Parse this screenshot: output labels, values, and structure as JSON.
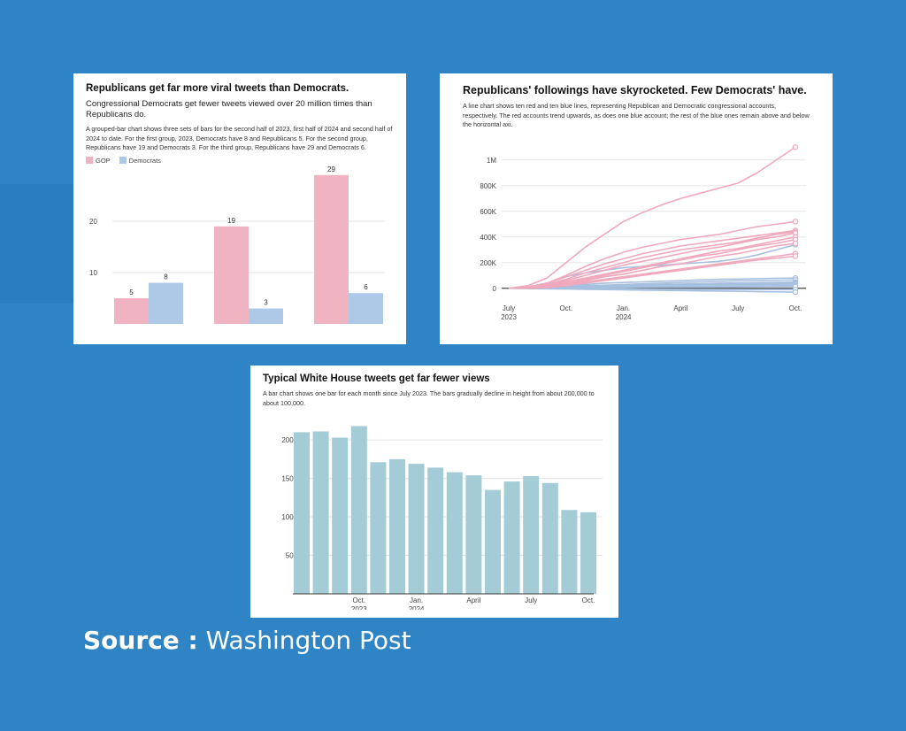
{
  "source": {
    "label": "Source :",
    "value": "Washington Post"
  },
  "chart_data": [
    {
      "type": "bar",
      "title": "Republicans get far more viral tweets than Democrats.",
      "subtitle": "Congressional Democrats get fewer tweets viewed over 20 million times than Republicans do.",
      "description": "A grouped-bar chart shows three sets of bars for the second half of 2023, first half of 2024 and second half of 2024 to date. For the first group, 2023, Democrats have 8 and Republicans 5. For the second group, Republicans have 19 and Democrats 3. For the third group, Republicans have 29 and Democrats 6.",
      "categories": [
        "",
        "",
        ""
      ],
      "series": [
        {
          "name": "GOP",
          "color": "#f0b3c2",
          "values": [
            5,
            19,
            29
          ]
        },
        {
          "name": "Democrats",
          "color": "#aec8e8",
          "values": [
            8,
            3,
            6
          ]
        }
      ],
      "yticks": [
        10,
        20
      ],
      "ylim": [
        0,
        30
      ],
      "legend": "top-left"
    },
    {
      "type": "line",
      "title": "Republicans' followings have skyrocketed. Few Democrats' have.",
      "description": "A line chart shows ten red and ten blue lines, representing Republican and Democratic congressional accounts, respectively. The red accounts trend upwards, as does one blue account; the rest of the blue ones remain above and below the horizontal axi.",
      "x_ticks": [
        {
          "label": "July",
          "sublabel": "2023",
          "date": "2023-07"
        },
        {
          "label": "Oct.",
          "sublabel": "",
          "date": "2023-10"
        },
        {
          "label": "Jan.",
          "sublabel": "2024",
          "date": "2024-01"
        },
        {
          "label": "April",
          "sublabel": "",
          "date": "2024-04"
        },
        {
          "label": "July",
          "sublabel": "",
          "date": "2024-07"
        },
        {
          "label": "Oct.",
          "sublabel": "",
          "date": "2024-10"
        }
      ],
      "yticks": [
        {
          "label": "0",
          "value": 0
        },
        {
          "label": "200K",
          "value": 200000
        },
        {
          "label": "400K",
          "value": 400000
        },
        {
          "label": "600K",
          "value": 600000
        },
        {
          "label": "800K",
          "value": 800000
        },
        {
          "label": "1M",
          "value": 1000000
        }
      ],
      "ylim": [
        -50000,
        1150000
      ],
      "x_dates": [
        "2023-07",
        "2023-08",
        "2023-09",
        "2023-10",
        "2023-11",
        "2023-12",
        "2024-01",
        "2024-02",
        "2024-03",
        "2024-04",
        "2024-05",
        "2024-06",
        "2024-07",
        "2024-08",
        "2024-09",
        "2024-10"
      ],
      "series": [
        {
          "name": "",
          "party": "R",
          "values": [
            0,
            20000,
            80000,
            200000,
            320000,
            420000,
            520000,
            590000,
            650000,
            700000,
            740000,
            780000,
            820000,
            900000,
            1000000,
            1100000
          ]
        },
        {
          "name": "",
          "party": "R",
          "values": [
            0,
            10000,
            40000,
            100000,
            170000,
            230000,
            280000,
            320000,
            350000,
            380000,
            400000,
            420000,
            450000,
            480000,
            500000,
            520000
          ]
        },
        {
          "name": "",
          "party": "R",
          "values": [
            0,
            10000,
            40000,
            90000,
            140000,
            190000,
            230000,
            270000,
            300000,
            330000,
            350000,
            370000,
            390000,
            410000,
            430000,
            450000
          ]
        },
        {
          "name": "",
          "party": "R",
          "values": [
            0,
            5000,
            30000,
            70000,
            120000,
            160000,
            200000,
            240000,
            270000,
            300000,
            320000,
            340000,
            360000,
            390000,
            420000,
            440000
          ]
        },
        {
          "name": "",
          "party": "R",
          "values": [
            0,
            5000,
            25000,
            60000,
            100000,
            140000,
            180000,
            210000,
            240000,
            270000,
            300000,
            320000,
            350000,
            380000,
            400000,
            430000
          ]
        },
        {
          "name": "",
          "party": "R",
          "values": [
            0,
            0,
            20000,
            50000,
            80000,
            110000,
            140000,
            170000,
            200000,
            230000,
            260000,
            290000,
            310000,
            340000,
            370000,
            400000
          ]
        },
        {
          "name": "",
          "party": "R",
          "values": [
            0,
            0,
            15000,
            40000,
            70000,
            100000,
            130000,
            160000,
            190000,
            220000,
            250000,
            270000,
            300000,
            330000,
            350000,
            380000
          ]
        },
        {
          "name": "",
          "party": "R",
          "values": [
            0,
            0,
            10000,
            30000,
            60000,
            90000,
            110000,
            140000,
            170000,
            190000,
            220000,
            250000,
            270000,
            300000,
            330000,
            350000
          ]
        },
        {
          "name": "",
          "party": "R",
          "values": [
            0,
            0,
            10000,
            25000,
            50000,
            70000,
            90000,
            110000,
            130000,
            150000,
            170000,
            190000,
            210000,
            230000,
            250000,
            270000
          ]
        },
        {
          "name": "",
          "party": "R",
          "values": [
            0,
            0,
            5000,
            20000,
            40000,
            60000,
            80000,
            100000,
            120000,
            140000,
            160000,
            180000,
            200000,
            220000,
            235000,
            250000
          ]
        },
        {
          "name": "",
          "party": "D",
          "values": [
            0,
            10000,
            40000,
            90000,
            120000,
            140000,
            160000,
            170000,
            180000,
            190000,
            200000,
            210000,
            230000,
            260000,
            300000,
            340000
          ]
        },
        {
          "name": "",
          "party": "D",
          "values": [
            0,
            5000,
            10000,
            20000,
            30000,
            40000,
            45000,
            50000,
            55000,
            60000,
            65000,
            70000,
            72000,
            75000,
            78000,
            80000
          ]
        },
        {
          "name": "",
          "party": "D",
          "values": [
            0,
            5000,
            10000,
            15000,
            20000,
            25000,
            30000,
            35000,
            40000,
            45000,
            50000,
            55000,
            58000,
            60000,
            62000,
            65000
          ]
        },
        {
          "name": "",
          "party": "D",
          "values": [
            0,
            2000,
            5000,
            10000,
            15000,
            20000,
            25000,
            28000,
            30000,
            33000,
            36000,
            40000,
            42000,
            44000,
            46000,
            48000
          ]
        },
        {
          "name": "",
          "party": "D",
          "values": [
            0,
            2000,
            4000,
            8000,
            12000,
            15000,
            18000,
            21000,
            24000,
            27000,
            30000,
            32000,
            34000,
            36000,
            38000,
            40000
          ]
        },
        {
          "name": "",
          "party": "D",
          "values": [
            0,
            1000,
            3000,
            6000,
            9000,
            12000,
            14000,
            16000,
            18000,
            20000,
            22000,
            24000,
            26000,
            28000,
            30000,
            32000
          ]
        },
        {
          "name": "",
          "party": "D",
          "values": [
            0,
            1000,
            2000,
            4000,
            6000,
            8000,
            10000,
            11000,
            12000,
            13000,
            14000,
            15000,
            16000,
            18000,
            20000,
            22000
          ]
        },
        {
          "name": "",
          "party": "D",
          "values": [
            0,
            0,
            1000,
            2000,
            3000,
            4000,
            5000,
            6000,
            7000,
            8000,
            9000,
            10000,
            11000,
            12000,
            13000,
            14000
          ]
        },
        {
          "name": "",
          "party": "D",
          "values": [
            0,
            -1000,
            -2000,
            -3000,
            -4000,
            -5000,
            -6000,
            -7000,
            -8000,
            -9000,
            -10000,
            -10000,
            -10000,
            -10000,
            -10000,
            -10000
          ]
        },
        {
          "name": "",
          "party": "D",
          "values": [
            0,
            -2000,
            -4000,
            -6000,
            -8000,
            -10000,
            -12000,
            -14000,
            -16000,
            -18000,
            -20000,
            -22000,
            -24000,
            -26000,
            -28000,
            -30000
          ]
        }
      ],
      "colors": {
        "R": "#f0a8bd",
        "D": "#a8c0e0"
      }
    },
    {
      "type": "bar",
      "title": "Typical White House tweets get far fewer views",
      "description": "A bar chart shows one bar for each month since July 2023. The bars gradually decline in height from about 200,000 to about 100,000.",
      "categories": [
        "2023-07",
        "2023-08",
        "2023-09",
        "2023-10",
        "2023-11",
        "2023-12",
        "2024-01",
        "2024-02",
        "2024-03",
        "2024-04",
        "2024-05",
        "2024-06",
        "2024-07",
        "2024-08",
        "2024-09",
        "2024-10"
      ],
      "values": [
        210000,
        211000,
        203000,
        218000,
        171000,
        175000,
        169000,
        164000,
        158000,
        154000,
        135000,
        146000,
        153000,
        144000,
        109000,
        106000
      ],
      "color": "#a4ccd6",
      "yticks": [
        {
          "label": "50K",
          "value": 50000
        },
        {
          "label": "100K",
          "value": 100000
        },
        {
          "label": "150K",
          "value": 150000
        },
        {
          "label": "200K",
          "value": 200000
        }
      ],
      "xticks": [
        {
          "label": "Oct.",
          "sublabel": "2023",
          "index": 3
        },
        {
          "label": "Jan.",
          "sublabel": "2024",
          "index": 6
        },
        {
          "label": "April",
          "sublabel": "",
          "index": 9
        },
        {
          "label": "July",
          "sublabel": "",
          "index": 12
        },
        {
          "label": "Oct.",
          "sublabel": "",
          "index": 15
        }
      ],
      "ylim": [
        0,
        230000
      ]
    }
  ]
}
